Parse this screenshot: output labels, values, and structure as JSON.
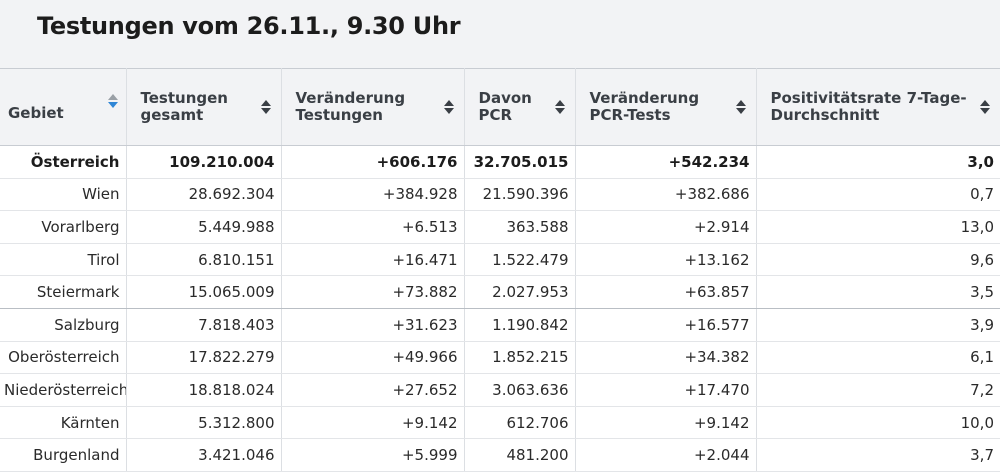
{
  "title": "Testungen vom 26.11., 9.30 Uhr",
  "columns": [
    {
      "label": "Gebiet"
    },
    {
      "label": "Testungen gesamt"
    },
    {
      "label": "Veränderung Testungen"
    },
    {
      "label": "Davon PCR"
    },
    {
      "label": "Veränderung PCR-Tests"
    },
    {
      "label": "Positivitätsrate 7-Tage-Durchschnitt"
    }
  ],
  "sort_icon": "sort-arrows-icon",
  "sort_active_color": "#2f86d6",
  "rows": [
    {
      "gebiet": "Österreich",
      "testungen": "109.210.004",
      "veraenderung": "+606.176",
      "pcr": "32.705.015",
      "pcr_veraenderung": "+542.234",
      "rate": "3,0"
    },
    {
      "gebiet": "Wien",
      "testungen": "28.692.304",
      "veraenderung": "+384.928",
      "pcr": "21.590.396",
      "pcr_veraenderung": "+382.686",
      "rate": "0,7"
    },
    {
      "gebiet": "Vorarlberg",
      "testungen": "5.449.988",
      "veraenderung": "+6.513",
      "pcr": "363.588",
      "pcr_veraenderung": "+2.914",
      "rate": "13,0"
    },
    {
      "gebiet": "Tirol",
      "testungen": "6.810.151",
      "veraenderung": "+16.471",
      "pcr": "1.522.479",
      "pcr_veraenderung": "+13.162",
      "rate": "9,6"
    },
    {
      "gebiet": "Steiermark",
      "testungen": "15.065.009",
      "veraenderung": "+73.882",
      "pcr": "2.027.953",
      "pcr_veraenderung": "+63.857",
      "rate": "3,5"
    },
    {
      "gebiet": "Salzburg",
      "testungen": "7.818.403",
      "veraenderung": "+31.623",
      "pcr": "1.190.842",
      "pcr_veraenderung": "+16.577",
      "rate": "3,9"
    },
    {
      "gebiet": "Oberösterreich",
      "testungen": "17.822.279",
      "veraenderung": "+49.966",
      "pcr": "1.852.215",
      "pcr_veraenderung": "+34.382",
      "rate": "6,1"
    },
    {
      "gebiet": "Niederösterreich",
      "testungen": "18.818.024",
      "veraenderung": "+27.652",
      "pcr": "3.063.636",
      "pcr_veraenderung": "+17.470",
      "rate": "7,2"
    },
    {
      "gebiet": "Kärnten",
      "testungen": "5.312.800",
      "veraenderung": "+9.142",
      "pcr": "612.706",
      "pcr_veraenderung": "+9.142",
      "rate": "10,0"
    },
    {
      "gebiet": "Burgenland",
      "testungen": "3.421.046",
      "veraenderung": "+5.999",
      "pcr": "481.200",
      "pcr_veraenderung": "+2.044",
      "rate": "3,7"
    }
  ]
}
